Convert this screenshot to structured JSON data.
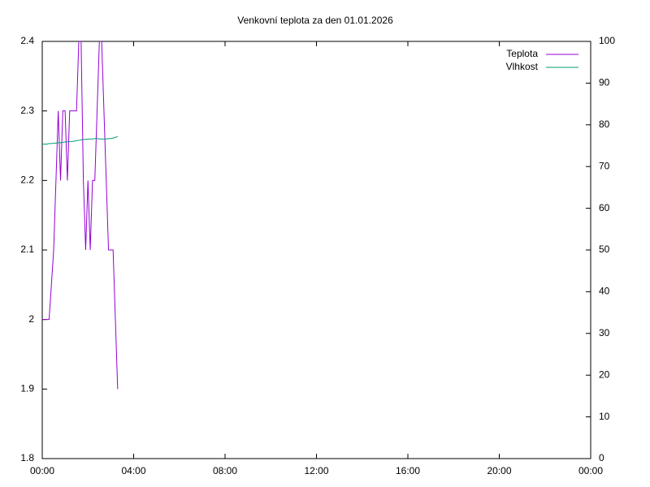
{
  "chart_data": {
    "type": "line",
    "title": "Venkovní teplota za den 01.01.2026",
    "x": [
      0,
      0.1,
      0.2,
      0.3,
      0.4,
      0.5,
      0.6,
      0.7,
      0.8,
      0.9,
      1.0,
      1.1,
      1.2,
      1.3,
      1.4,
      1.5,
      1.6,
      1.7,
      1.8,
      1.9,
      2.0,
      2.1,
      2.2,
      2.3,
      2.4,
      2.5,
      2.6,
      2.7,
      2.8,
      2.9,
      3.0,
      3.1,
      3.2,
      3.3
    ],
    "series": [
      {
        "name": "Teplota",
        "color": "#9400d3",
        "values": [
          2.0,
          2.0,
          2.0,
          2.0,
          2.05,
          2.1,
          2.2,
          2.3,
          2.2,
          2.3,
          2.3,
          2.2,
          2.3,
          2.3,
          2.3,
          2.3,
          2.4,
          2.4,
          2.2,
          2.1,
          2.2,
          2.1,
          2.2,
          2.2,
          2.3,
          2.4,
          2.4,
          2.3,
          2.2,
          2.1,
          2.1,
          2.1,
          2.0,
          1.9
        ]
      },
      {
        "name": "Vlhkost",
        "color": "#009e73",
        "axis": "y2",
        "values": [
          75.3,
          75.4,
          75.4,
          75.5,
          75.5,
          75.6,
          75.6,
          75.7,
          75.7,
          75.8,
          75.9,
          75.9,
          76.0,
          76.0,
          76.1,
          76.2,
          76.3,
          76.4,
          76.5,
          76.5,
          76.6,
          76.6,
          76.6,
          76.7,
          76.7,
          76.6,
          76.6,
          76.6,
          76.6,
          76.7,
          76.7,
          76.8,
          77.0,
          77.2
        ]
      }
    ],
    "xlim": [
      0,
      24
    ],
    "xticks": [
      {
        "value": 0,
        "label": "00:00"
      },
      {
        "value": 4,
        "label": "04:00"
      },
      {
        "value": 8,
        "label": "08:00"
      },
      {
        "value": 12,
        "label": "12:00"
      },
      {
        "value": 16,
        "label": "16:00"
      },
      {
        "value": 20,
        "label": "20:00"
      },
      {
        "value": 24,
        "label": "00:00"
      }
    ],
    "ylim": [
      1.8,
      2.4
    ],
    "yticks": [
      1.8,
      1.9,
      2,
      2.1,
      2.2,
      2.3,
      2.4
    ],
    "y2lim": [
      0,
      100
    ],
    "y2ticks": [
      0,
      10,
      20,
      30,
      40,
      50,
      60,
      70,
      80,
      90,
      100
    ],
    "grid": false,
    "legend": "top-right"
  }
}
